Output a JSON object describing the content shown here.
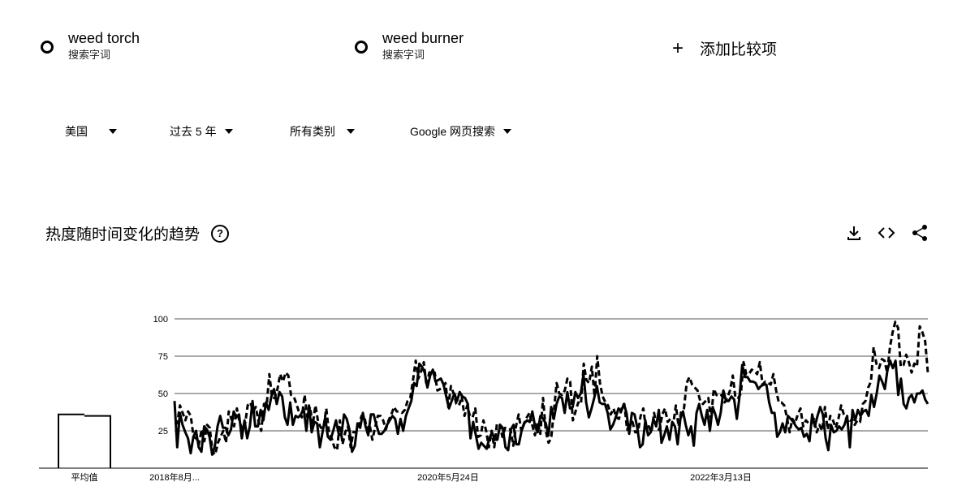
{
  "terms": [
    {
      "name": "weed torch",
      "type": "搜索字词",
      "color": "#000000"
    },
    {
      "name": "weed burner",
      "type": "搜索字词",
      "color": "#000000"
    }
  ],
  "add_compare_label": "添加比较项",
  "filters": {
    "region": "美国",
    "time_range": "过去 5 年",
    "category": "所有类别",
    "search_type": "Google 网页搜索"
  },
  "section": {
    "title": "热度随时间变化的趋势",
    "help_icon": "help-icon",
    "tools": [
      "download-icon",
      "embed-code-icon",
      "share-icon"
    ]
  },
  "chart_data": {
    "type": "line",
    "ylim": [
      0,
      100
    ],
    "y_ticks": [
      "100",
      "75",
      "50",
      "25"
    ],
    "x_tick_labels": [
      "2018年8月...",
      "2020年5月24日",
      "2022年3月13日"
    ],
    "average_label": "平均值",
    "average": {
      "weed torch": 36,
      "weed burner": 35
    },
    "series": [
      {
        "name": "weed torch",
        "style": "solid",
        "values": [
          45,
          14,
          37,
          29,
          24,
          20,
          10,
          21,
          25,
          14,
          11,
          28,
          26,
          21,
          9,
          15,
          28,
          35,
          27,
          27,
          22,
          26,
          38,
          34,
          36,
          20,
          32,
          20,
          28,
          45,
          28,
          28,
          39,
          32,
          44,
          39,
          48,
          53,
          43,
          51,
          48,
          34,
          29,
          44,
          29,
          35,
          34,
          36,
          40,
          25,
          42,
          24,
          31,
          30,
          14,
          24,
          34,
          21,
          19,
          25,
          32,
          23,
          22,
          36,
          33,
          26,
          11,
          15,
          30,
          27,
          37,
          28,
          22,
          36,
          36,
          29,
          23,
          23,
          25,
          29,
          32,
          35,
          33,
          23,
          33,
          25,
          35,
          40,
          45,
          57,
          55,
          70,
          68,
          64,
          54,
          62,
          66,
          58,
          59,
          60,
          56,
          48,
          40,
          45,
          50,
          45,
          51,
          48,
          47,
          43,
          20,
          31,
          22,
          13,
          17,
          15,
          13,
          20,
          24,
          19,
          19,
          29,
          27,
          14,
          12,
          26,
          29,
          16,
          16,
          25,
          30,
          32,
          31,
          38,
          28,
          24,
          35,
          33,
          30,
          22,
          41,
          33,
          43,
          48,
          47,
          37,
          51,
          40,
          41,
          51,
          47,
          50,
          63,
          44,
          34,
          40,
          47,
          55,
          44,
          43,
          43,
          37,
          26,
          29,
          34,
          40,
          38,
          43,
          37,
          23,
          37,
          36,
          27,
          14,
          16,
          32,
          22,
          24,
          33,
          28,
          39,
          17,
          22,
          28,
          19,
          31,
          28,
          16,
          33,
          38,
          29,
          22,
          28,
          15,
          37,
          43,
          35,
          29,
          39,
          25,
          41,
          36,
          29,
          37,
          52,
          45,
          45,
          48,
          46,
          33,
          48,
          69,
          61,
          61,
          58,
          58,
          57,
          53,
          55,
          56,
          56,
          44,
          37,
          37,
          21,
          24,
          30,
          24,
          35,
          33,
          31,
          28,
          26,
          27,
          21,
          23,
          18,
          36,
          28,
          35,
          41,
          36,
          20,
          12,
          29,
          24,
          25,
          28,
          26,
          29,
          35,
          14,
          39,
          32,
          39,
          35,
          38,
          39,
          35,
          49,
          41,
          50,
          62,
          58,
          53,
          66,
          72,
          67,
          72,
          49,
          60,
          43,
          40,
          47,
          49,
          44,
          50,
          50,
          52,
          46,
          43
        ]
      },
      {
        "name": "weed burner",
        "style": "dashed",
        "values": [
          30,
          30,
          42,
          37,
          32,
          38,
          35,
          21,
          20,
          16,
          26,
          18,
          29,
          27,
          11,
          9,
          17,
          21,
          25,
          17,
          38,
          33,
          28,
          40,
          31,
          26,
          29,
          42,
          44,
          38,
          41,
          31,
          25,
          43,
          42,
          63,
          47,
          47,
          53,
          63,
          58,
          64,
          62,
          49,
          48,
          43,
          37,
          34,
          49,
          34,
          41,
          29,
          42,
          31,
          27,
          27,
          40,
          24,
          20,
          14,
          12,
          32,
          16,
          24,
          28,
          14,
          24,
          24,
          28,
          35,
          35,
          26,
          29,
          19,
          27,
          35,
          35,
          32,
          26,
          32,
          36,
          41,
          38,
          38,
          37,
          39,
          45,
          47,
          59,
          72,
          60,
          65,
          71,
          55,
          64,
          65,
          64,
          52,
          53,
          54,
          57,
          41,
          55,
          50,
          43,
          42,
          48,
          35,
          42,
          35,
          34,
          40,
          21,
          22,
          32,
          25,
          14,
          25,
          14,
          30,
          29,
          21,
          27,
          26,
          26,
          15,
          28,
          36,
          25,
          30,
          34,
          37,
          29,
          22,
          31,
          23,
          47,
          25,
          17,
          20,
          38,
          57,
          50,
          49,
          52,
          60,
          58,
          32,
          38,
          44,
          43,
          70,
          59,
          57,
          68,
          48,
          75,
          57,
          48,
          44,
          42,
          36,
          40,
          34,
          33,
          40,
          43,
          26,
          29,
          31,
          24,
          24,
          35,
          40,
          26,
          28,
          24,
          37,
          26,
          26,
          36,
          40,
          31,
          33,
          29,
          42,
          28,
          38,
          40,
          57,
          61,
          56,
          54,
          52,
          45,
          43,
          45,
          47,
          33,
          53,
          49,
          48,
          49,
          44,
          47,
          52,
          62,
          47,
          47,
          50,
          71,
          63,
          63,
          66,
          65,
          63,
          71,
          56,
          58,
          57,
          56,
          63,
          52,
          44,
          44,
          42,
          34,
          24,
          33,
          30,
          36,
          40,
          28,
          32,
          30,
          30,
          33,
          24,
          29,
          25,
          41,
          26,
          35,
          32,
          27,
          33,
          42,
          36,
          33,
          30,
          33,
          29,
          32,
          31,
          43,
          45,
          54,
          58,
          81,
          70,
          67,
          73,
          72,
          64,
          81,
          91,
          98,
          94,
          68,
          69,
          76,
          71,
          64,
          70,
          68,
          95,
          91,
          85,
          64
        ]
      }
    ]
  }
}
